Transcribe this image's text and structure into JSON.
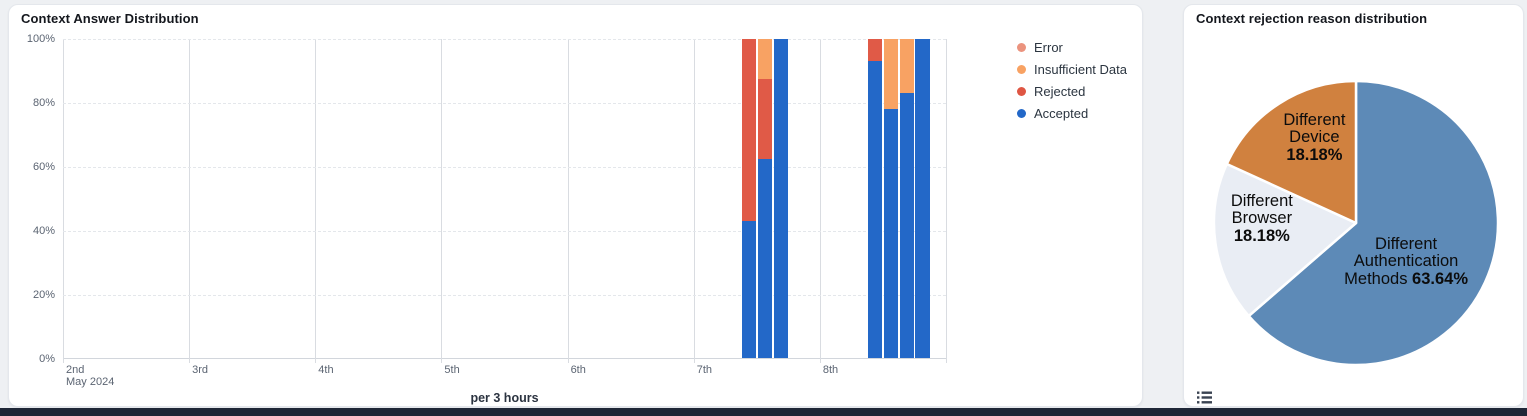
{
  "cards": {
    "answer_distribution": {
      "title": "Context Answer Distribution",
      "x_axis_title": "per 3 hours",
      "x_month_label": "May 2024",
      "y_tick_labels": [
        "100%",
        "80%",
        "60%",
        "40%",
        "20%",
        "0%"
      ],
      "x_tick_labels": [
        "2nd",
        "3rd",
        "4th",
        "5th",
        "6th",
        "7th",
        "8th"
      ],
      "legend": [
        {
          "key": "error",
          "label": "Error",
          "color": "#eb937e"
        },
        {
          "key": "insufficient_data",
          "label": "Insufficient Data",
          "color": "#f8a263"
        },
        {
          "key": "rejected",
          "label": "Rejected",
          "color": "#df5643"
        },
        {
          "key": "accepted",
          "label": "Accepted",
          "color": "#2368c8"
        }
      ]
    },
    "rejection_reason": {
      "title": "Context rejection reason distribution"
    }
  },
  "chart_data": [
    {
      "type": "bar",
      "stacked": true,
      "title": "Context Answer Distribution",
      "ylabel": "",
      "ylim": [
        0,
        100
      ],
      "y_ticks_pct": [
        0,
        20,
        40,
        60,
        80,
        100
      ],
      "x_axis": {
        "tick_labels": [
          "2nd",
          "3rd",
          "4th",
          "5th",
          "6th",
          "7th",
          "8th"
        ],
        "month": "May 2024",
        "interval": "per 3 hours",
        "days_shown": 7,
        "start_day": 2
      },
      "stack_order": [
        "accepted",
        "rejected",
        "insufficient_data",
        "error"
      ],
      "colors": {
        "accepted": "#2368c8",
        "rejected": "#e05a47",
        "insufficient_data": "#f8a263",
        "error": "#eb937e"
      },
      "bars": [
        {
          "date": "May 7",
          "hour": 9,
          "accepted": 43,
          "rejected": 57,
          "insufficient_data": 0,
          "error": 0
        },
        {
          "date": "May 7",
          "hour": 12,
          "accepted": 62.5,
          "rejected": 25,
          "insufficient_data": 12.5,
          "error": 0
        },
        {
          "date": "May 7",
          "hour": 15,
          "accepted": 100,
          "rejected": 0,
          "insufficient_data": 0,
          "error": 0
        },
        {
          "date": "May 8",
          "hour": 9,
          "accepted": 93,
          "rejected": 7,
          "insufficient_data": 0,
          "error": 0
        },
        {
          "date": "May 8",
          "hour": 12,
          "accepted": 78,
          "rejected": 0,
          "insufficient_data": 22,
          "error": 0
        },
        {
          "date": "May 8",
          "hour": 15,
          "accepted": 83,
          "rejected": 0,
          "insufficient_data": 17,
          "error": 0
        },
        {
          "date": "May 8",
          "hour": 18,
          "accepted": 100,
          "rejected": 0,
          "insufficient_data": 0,
          "error": 0
        }
      ]
    },
    {
      "type": "pie",
      "title": "Context rejection reason distribution",
      "start_angle": "top",
      "direction": "clockwise",
      "slices": [
        {
          "label": "Different Authentication Methods",
          "value": 63.64,
          "color": "#5d8ab7",
          "label_lines": [
            "Different",
            "Authentication",
            "Methods **63.64%**"
          ]
        },
        {
          "label": "Different Browser",
          "value": 18.18,
          "color": "#e9edf4",
          "label_lines": [
            "Different",
            "Browser",
            "**18.18%**"
          ]
        },
        {
          "label": "Different Device",
          "value": 18.18,
          "color": "#d0813f",
          "label_lines": [
            "Different",
            "Device",
            "**18.18%**"
          ]
        }
      ]
    }
  ]
}
